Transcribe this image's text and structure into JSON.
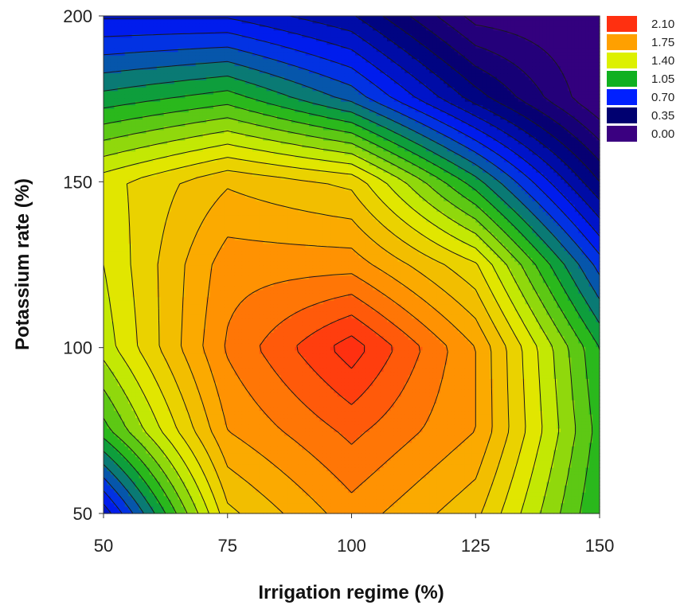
{
  "chart_data": {
    "type": "heatmap",
    "subtype": "filled-contour",
    "xlabel": "Irrigation regime (%)",
    "ylabel": "Potassium rate (%)",
    "xlim": [
      50,
      150
    ],
    "ylim": [
      50,
      200
    ],
    "x_ticks": [
      50,
      75,
      100,
      125,
      150
    ],
    "y_ticks": [
      50,
      100,
      150,
      200
    ],
    "x": [
      50,
      75,
      100,
      125,
      150
    ],
    "y": [
      50,
      75,
      100,
      125,
      150,
      175,
      200
    ],
    "z": [
      [
        0.55,
        1.55,
        1.8,
        1.6,
        1.05
      ],
      [
        1.1,
        1.75,
        1.95,
        1.75,
        1.1
      ],
      [
        1.35,
        1.85,
        2.15,
        1.75,
        1.05
      ],
      [
        1.4,
        1.8,
        1.8,
        1.5,
        0.75
      ],
      [
        1.45,
        1.65,
        1.55,
        1.0,
        0.35
      ],
      [
        1.0,
        1.1,
        0.85,
        0.4,
        0.0
      ],
      [
        0.6,
        0.6,
        0.45,
        0.05,
        0.0
      ]
    ],
    "grid": false,
    "legend_position": "top-right",
    "legend": [
      {
        "label": "2.10",
        "color": "#ff3010"
      },
      {
        "label": "1.75",
        "color": "#ffa000"
      },
      {
        "label": "1.40",
        "color": "#ddf000"
      },
      {
        "label": "1.05",
        "color": "#10b020"
      },
      {
        "label": "0.70",
        "color": "#0020ff"
      },
      {
        "label": "0.35",
        "color": "#000070"
      },
      {
        "label": "0.00",
        "color": "#3a0080"
      }
    ]
  }
}
